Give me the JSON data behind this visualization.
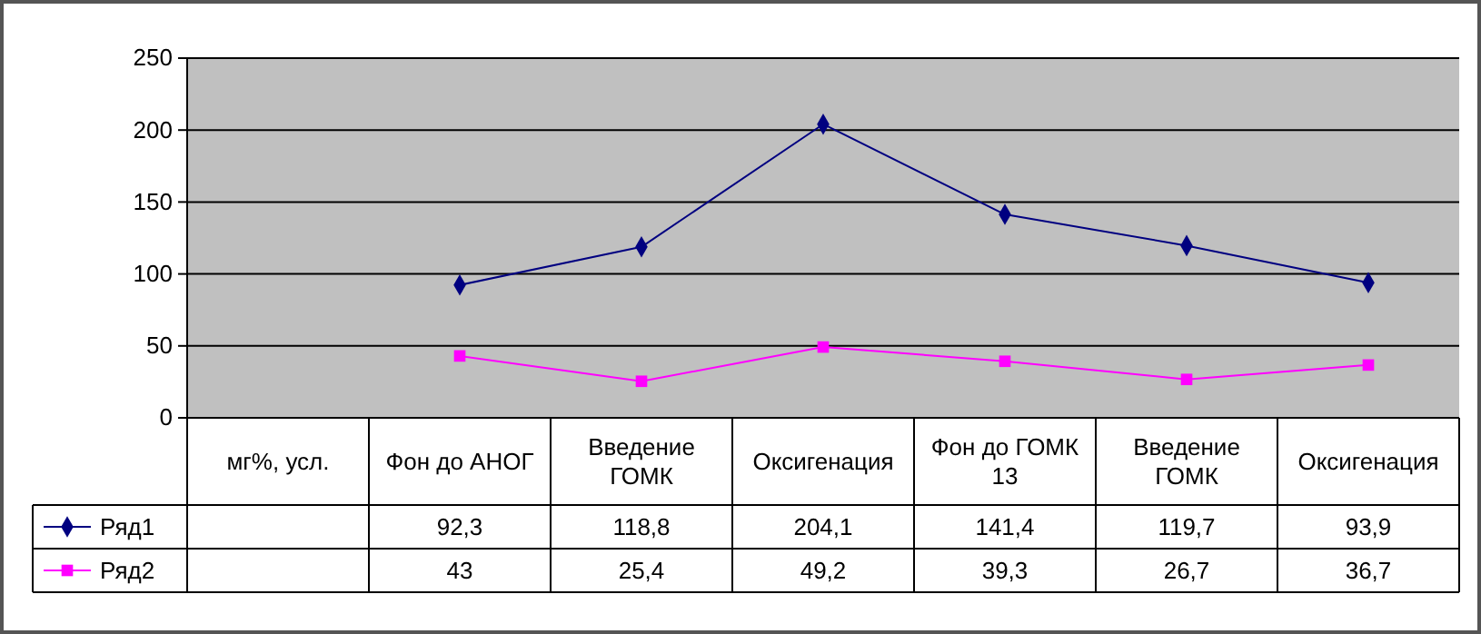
{
  "chart_data": {
    "type": "line",
    "categories": [
      "мг%, усл.",
      "Фон до АНОГ",
      "Введение ГОМК",
      "Оксигенация",
      "Фон до ГОМК 13",
      "Введение ГОМК",
      "Оксигенация"
    ],
    "series": [
      {
        "name": "Ряд1",
        "color": "#000080",
        "marker": "diamond",
        "values": [
          null,
          92.3,
          118.8,
          204.1,
          141.4,
          119.7,
          93.9
        ],
        "value_labels": [
          null,
          "92,3",
          "118,8",
          "204,1",
          "141,4",
          "119,7",
          "93,9"
        ]
      },
      {
        "name": "Ряд2",
        "color": "#ff00ff",
        "marker": "square",
        "values": [
          null,
          43,
          25.4,
          49.2,
          39.3,
          26.7,
          36.7
        ],
        "value_labels": [
          null,
          "43",
          "25,4",
          "49,2",
          "39,3",
          "26,7",
          "36,7"
        ]
      }
    ],
    "ylim": [
      0,
      250
    ],
    "yticks": [
      0,
      50,
      100,
      150,
      200,
      250
    ],
    "grid": "y",
    "legend": "bottom"
  }
}
